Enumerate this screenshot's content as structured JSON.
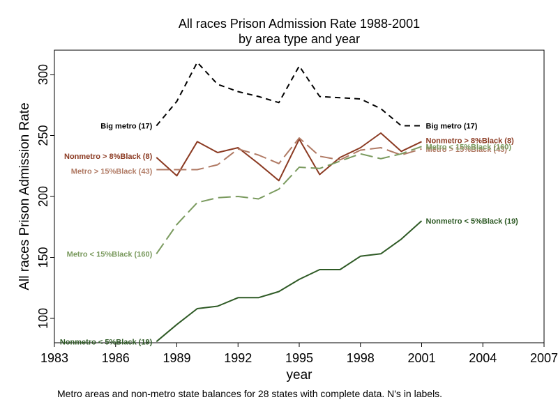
{
  "chart_data": {
    "type": "line",
    "title": "All races Prison Admission Rate 1988-2001",
    "subtitle": "by area type and year",
    "xlabel": "year",
    "ylabel": "All races Prison Admission Rate",
    "note": "Metro areas and non-metro state balances for 28 states with complete data. N's in labels.",
    "xlim": [
      1983,
      2007
    ],
    "ylim": [
      80,
      320
    ],
    "x_ticks": [
      1983,
      1986,
      1989,
      1992,
      1995,
      1998,
      2001,
      2004,
      2007
    ],
    "y_ticks": [
      100,
      150,
      200,
      250,
      300
    ],
    "grid": false,
    "x": [
      1988,
      1989,
      1990,
      1991,
      1992,
      1993,
      1994,
      1995,
      1996,
      1997,
      1998,
      1999,
      2000,
      2001
    ],
    "series": [
      {
        "name": "Big metro  (17)",
        "color": "#000000",
        "dash": "short-dash",
        "values": [
          258,
          278,
          310,
          292,
          286,
          282,
          277,
          307,
          282,
          281,
          280,
          272,
          258,
          258
        ]
      },
      {
        "name": "Nonmetro > 8%Black (8)",
        "color": "#8B3A22",
        "dash": "solid",
        "values": [
          232,
          217,
          245,
          236,
          240,
          227,
          213,
          247,
          218,
          232,
          240,
          252,
          237,
          245
        ]
      },
      {
        "name": "Metro > 15%Black (43)",
        "color": "#B07A64",
        "dash": "long-dash",
        "values": [
          222,
          222,
          222,
          226,
          239,
          234,
          227,
          248,
          233,
          230,
          238,
          240,
          234,
          239
        ]
      },
      {
        "name": "Metro < 15%Black (160)",
        "color": "#7A9A5E",
        "dash": "long-dash",
        "values": [
          153,
          177,
          195,
          199,
          200,
          198,
          206,
          224,
          223,
          229,
          235,
          231,
          235,
          241
        ]
      },
      {
        "name": "Nonmetro < 5%Black (19)",
        "color": "#2E5A25",
        "dash": "solid",
        "values": [
          81,
          95,
          108,
          110,
          117,
          117,
          122,
          132,
          140,
          140,
          151,
          153,
          165,
          180
        ]
      }
    ]
  }
}
